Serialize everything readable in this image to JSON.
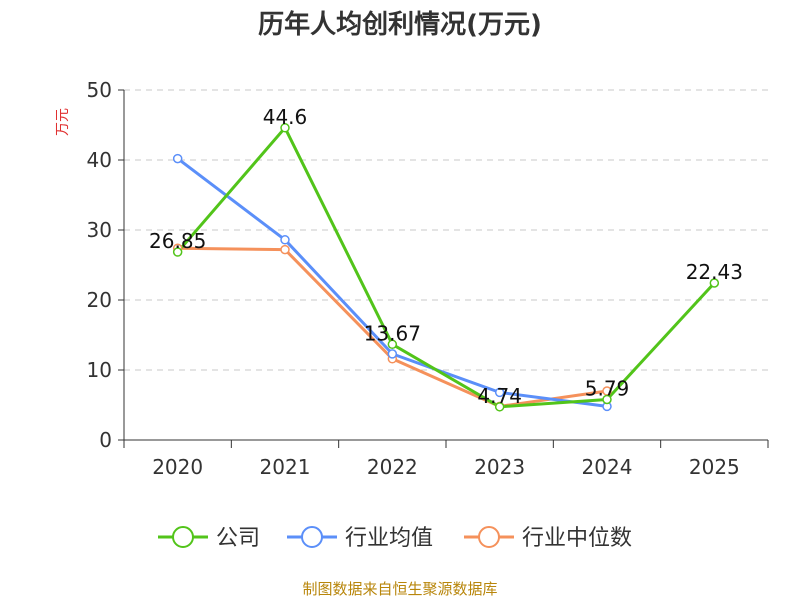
{
  "chart_data": {
    "type": "line",
    "title": "历年人均创利情况(万元)",
    "ylabel": "万元",
    "ylim": [
      0,
      50
    ],
    "yticks": [
      0,
      10,
      20,
      30,
      40,
      50
    ],
    "categories": [
      "2020",
      "2021",
      "2022",
      "2023",
      "2024",
      "2025"
    ],
    "grid": true,
    "legend_position": "bottom",
    "series": [
      {
        "name": "公司",
        "color": "#52c41a",
        "values": [
          26.85,
          44.6,
          13.67,
          4.74,
          5.79,
          22.43
        ],
        "labels": [
          "26.85",
          "44.6",
          "13.67",
          "4.74",
          "5.79",
          "22.43"
        ]
      },
      {
        "name": "行业均值",
        "color": "#5b8ff9",
        "values": [
          40.2,
          28.6,
          12.3,
          6.8,
          4.8,
          null
        ]
      },
      {
        "name": "行业中位数",
        "color": "#f5915b",
        "values": [
          27.4,
          27.2,
          11.6,
          4.8,
          7.0,
          null
        ]
      }
    ]
  },
  "footer": "制图数据来自恒生聚源数据库"
}
